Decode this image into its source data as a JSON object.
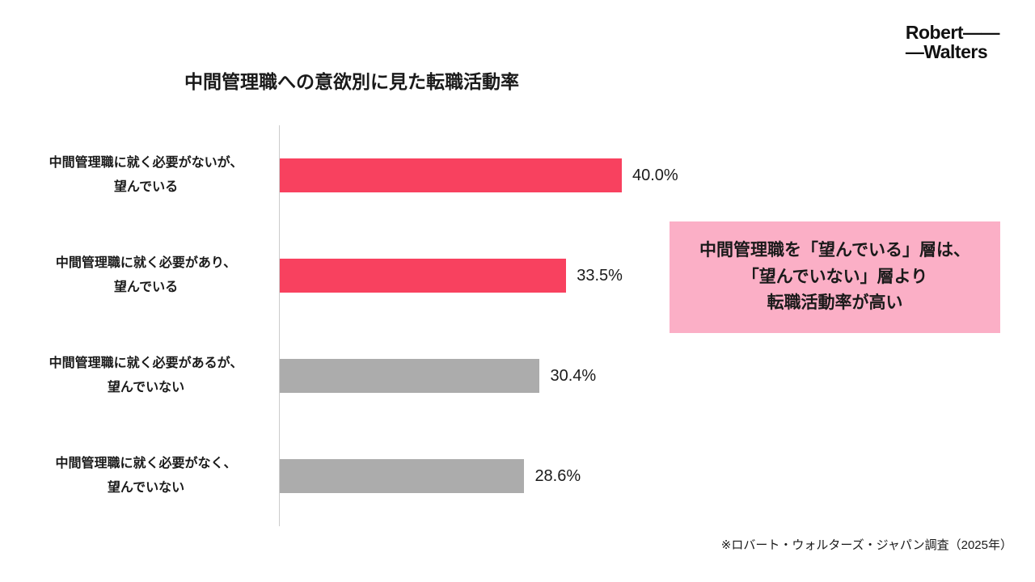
{
  "logo": {
    "line1": "Robert——",
    "line2": "—Walters"
  },
  "title": "中間管理職への意欲別に見た転職活動率",
  "chart_data": {
    "type": "bar",
    "orientation": "horizontal",
    "title": "中間管理職への意欲別に見た転職活動率",
    "categories": [
      "中間管理職に就く必要がないが、\n望んでいる",
      "中間管理職に就く必要があり、\n望んでいる",
      "中間管理職に就く必要があるが、\n望んでいない",
      "中間管理職に就く必要がなく、\n望んでいない"
    ],
    "values": [
      40.0,
      33.5,
      30.4,
      28.6
    ],
    "value_labels": [
      "40.0%",
      "33.5%",
      "30.4%",
      "28.6%"
    ],
    "bar_colors": [
      "#F8415F",
      "#F8415F",
      "#ACACAC",
      "#ACACAC"
    ],
    "unit": "%",
    "xlim": [
      0,
      45
    ],
    "grid": false,
    "legend": false
  },
  "annotation": {
    "text": "中間管理職を「望んでいる」層は、\n「望んでいない」層より\n転職活動率が高い",
    "background": "#FBAFC6",
    "text_color": "#1A1A1A"
  },
  "footnote": "※ロバート・ウォルターズ・ジャパン調査（2025年）",
  "colors": {
    "accent_red": "#F8415F",
    "neutral_gray": "#ACACAC",
    "annotation_pink": "#FBAFC6",
    "text": "#1A1A1A",
    "axis_line": "#CCCCCC"
  }
}
